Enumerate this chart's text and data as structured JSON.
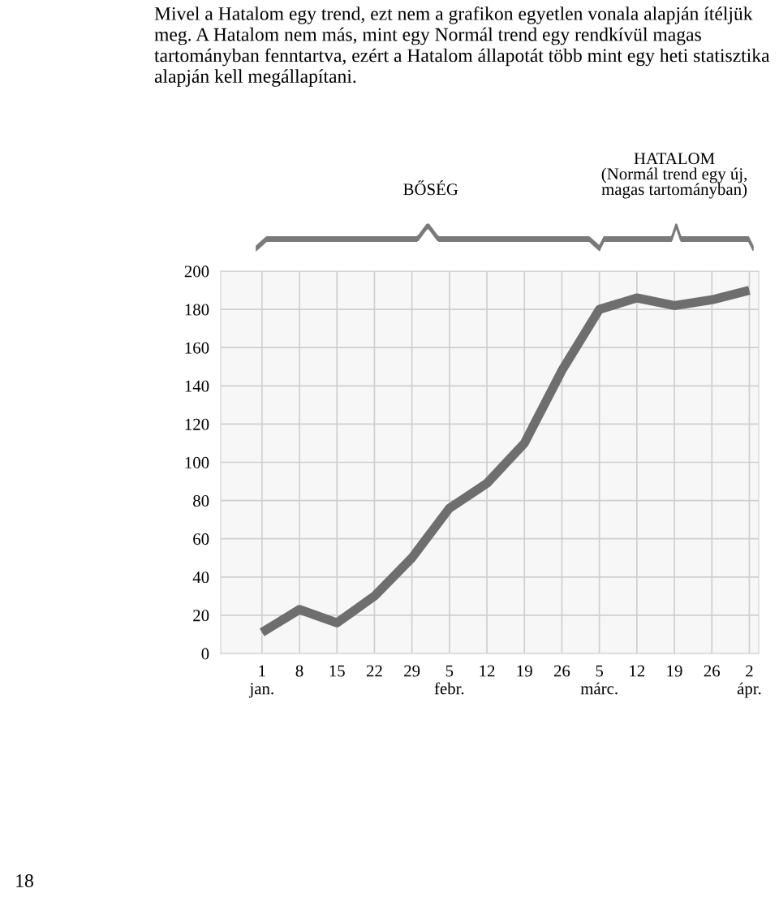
{
  "chart_data": {
    "type": "line",
    "categories": [
      "1\njan.",
      "8",
      "15",
      "22",
      "29",
      "5\nfebr.",
      "12",
      "19",
      "26",
      "5\nmárc.",
      "12",
      "19",
      "26",
      "2\nápr."
    ],
    "series": [
      {
        "color": "#6e6e6e",
        "values": [
          11,
          23,
          16,
          30,
          50,
          76,
          89,
          110,
          148,
          180,
          186,
          182,
          185,
          190
        ]
      }
    ],
    "ylim": [
      0,
      200
    ],
    "yticks": [
      0,
      20,
      40,
      60,
      80,
      100,
      120,
      140,
      160,
      180,
      200
    ],
    "grid": true,
    "marker": "none",
    "line_style": "solid",
    "annotations": [
      "Mivel a Hatalom egy trend, ezt nem a grafikon egyetlen vonala alapján ítéljük meg. A Hatalom nem más, mint egy Normál trend egy rendkívül magas tartományban fenntartva, ezért a Hatalom állapotát több mint egy heti statisztika alapján kell megállapítani.",
      "BŐSÉG",
      "HATALOM\n(Normál trend egy új,\nmagas tartományban)",
      "18"
    ]
  }
}
